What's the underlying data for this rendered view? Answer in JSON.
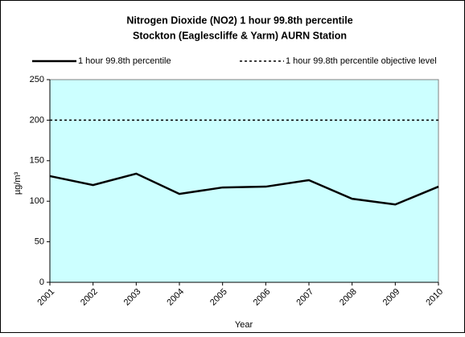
{
  "chart_data": {
    "type": "line",
    "title": "Nitrogen Dioxide (NO2) 1 hour 99.8th percentile",
    "subtitle": "Stockton (Eaglescliffe & Yarm) AURN Station",
    "x_label": "Year",
    "y_label": "µg/m³",
    "categories": [
      "2001",
      "2002",
      "2003",
      "2004",
      "2005",
      "2006",
      "2007",
      "2008",
      "2009",
      "2010"
    ],
    "series": [
      {
        "name": "1 hour 99.8th percentile",
        "color": "#000000",
        "line_style": "solid",
        "values": [
          131,
          120,
          134,
          109,
          117,
          118,
          126,
          103,
          96,
          118
        ]
      },
      {
        "name": "1 hour 99.8th percentile objective level",
        "color": "#000000",
        "line_style": "dotted",
        "values": [
          200,
          200,
          200,
          200,
          200,
          200,
          200,
          200,
          200,
          200
        ]
      }
    ],
    "ylim": [
      0,
      250
    ],
    "yticks": [
      0,
      50,
      100,
      150,
      200,
      250
    ],
    "plot_background": "#ccffff",
    "legend": "top"
  }
}
